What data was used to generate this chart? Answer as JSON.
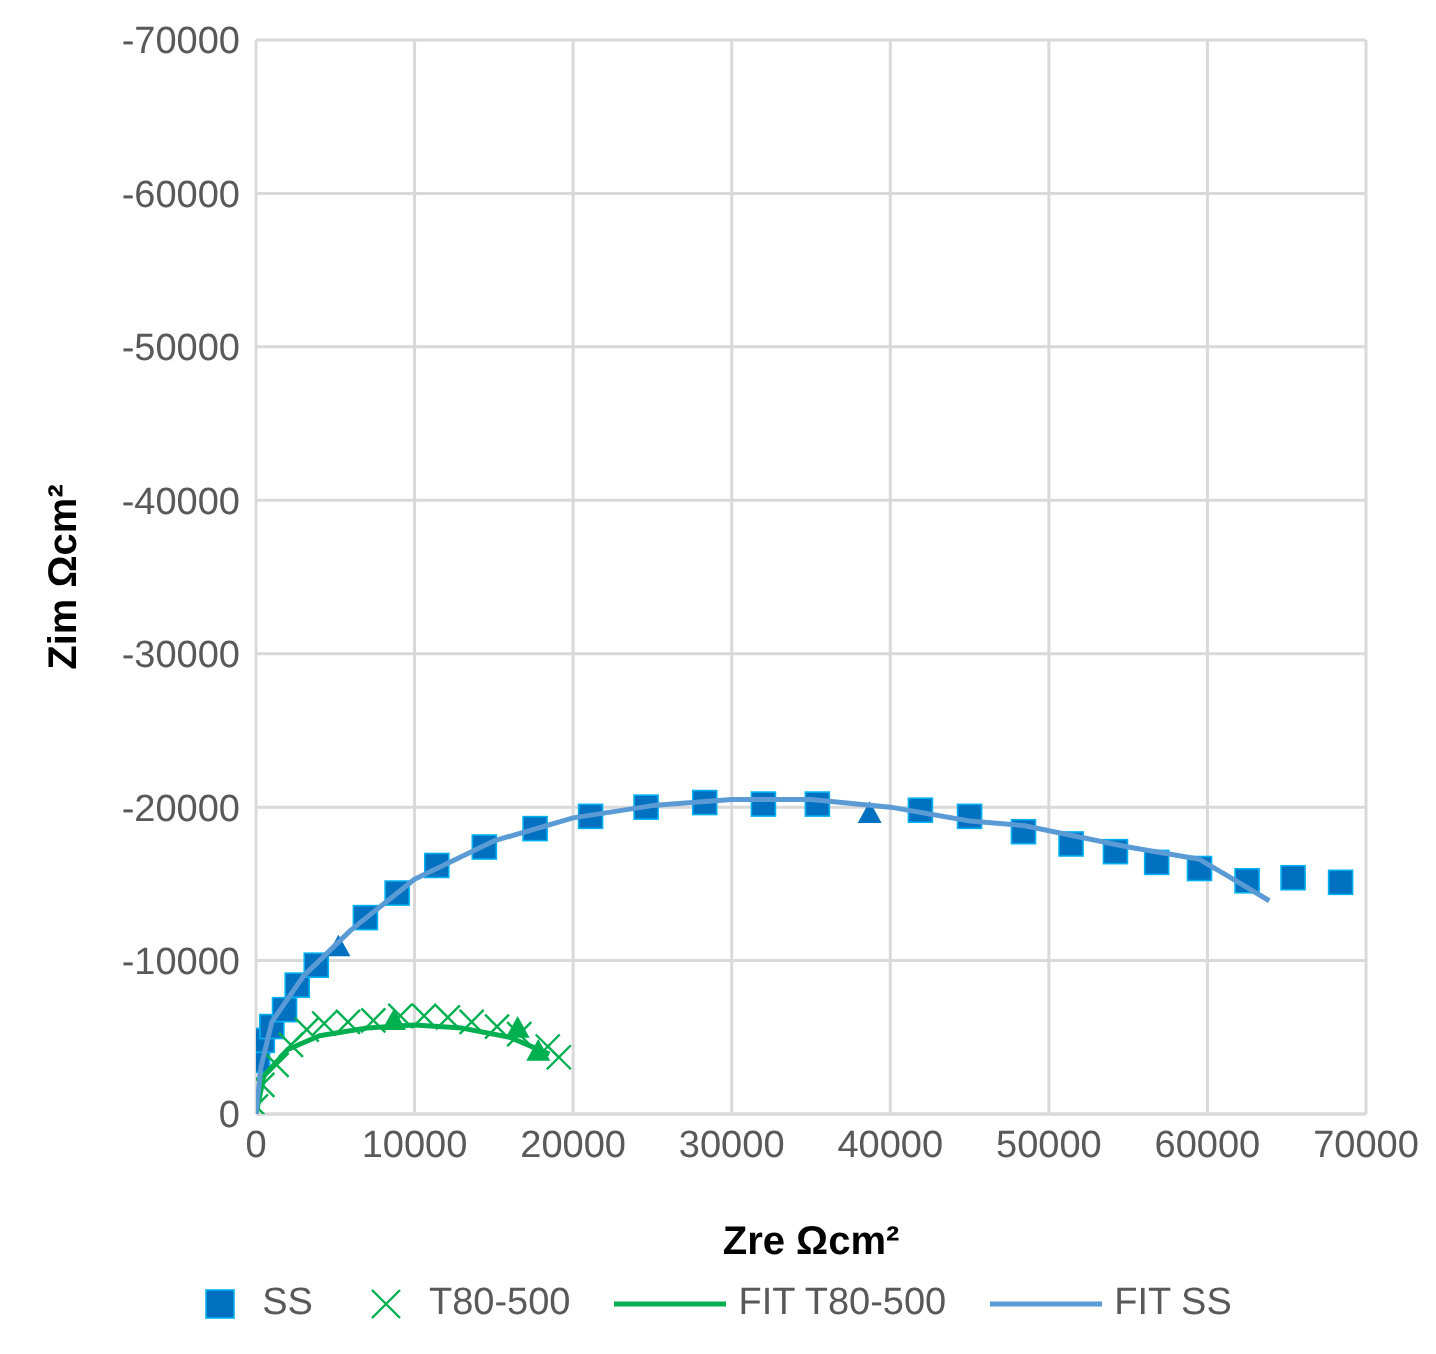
{
  "chart_data": {
    "type": "scatter",
    "xlabel": "Zre Ωcm²",
    "ylabel": "Zim Ωcm²",
    "xlim": [
      0,
      70000
    ],
    "xticks": [
      0,
      10000,
      20000,
      30000,
      40000,
      50000,
      60000,
      70000
    ],
    "ylim": [
      0,
      -70000
    ],
    "yticks": [
      0,
      -10000,
      -20000,
      -30000,
      -40000,
      -50000,
      -60000,
      -70000
    ],
    "grid": true,
    "legend": "bottom",
    "series": [
      {
        "name": "SS",
        "marker": "square",
        "color": "#0070c0",
        "x": [
          100,
          400,
          1000,
          1800,
          2600,
          3800,
          6900,
          8900,
          11400,
          14400,
          17600,
          21100,
          24600,
          28300,
          32000,
          35400,
          41900,
          45000,
          48400,
          51400,
          54200,
          56800,
          59500,
          62500,
          65400,
          68400
        ],
        "values": [
          -3500,
          -4800,
          -5700,
          -6800,
          -8400,
          -9700,
          -12800,
          -14400,
          -16200,
          -17400,
          -18600,
          -19400,
          -20000,
          -20300,
          -20200,
          -20200,
          -19800,
          -19400,
          -18400,
          -17600,
          -17100,
          -16400,
          -16000,
          -15200,
          -15400,
          -15100
        ]
      },
      {
        "name": "T80-500",
        "marker": "cross",
        "color": "#00b050",
        "x": [
          0,
          400,
          1300,
          2200,
          3200,
          4300,
          5800,
          7400,
          9100,
          10600,
          12100,
          13600,
          15200,
          16600,
          18400,
          19100
        ],
        "values": [
          -500,
          -1900,
          -3200,
          -4500,
          -5500,
          -5900,
          -6000,
          -6100,
          -6400,
          -6400,
          -6300,
          -6000,
          -5700,
          -5200,
          -4400,
          -3700
        ]
      },
      {
        "marker": "triangle",
        "color": "#0070c0",
        "x": [
          5200,
          38700
        ],
        "values": [
          -10900,
          -19600
        ]
      },
      {
        "marker": "triangle",
        "color": "#00b050",
        "x": [
          8700,
          16500,
          17800
        ],
        "values": [
          -6100,
          -5600,
          -4100
        ]
      },
      {
        "name": "FIT T80-500",
        "type": "line",
        "marker": "none",
        "line_style": "solid",
        "color": "#00b050",
        "x": [
          0,
          500,
          2000,
          4000,
          7000,
          10000,
          13000,
          16000,
          18500
        ],
        "values": [
          0,
          -2500,
          -4200,
          -5100,
          -5600,
          -5800,
          -5600,
          -5000,
          -3900
        ]
      },
      {
        "name": "FIT SS",
        "type": "line",
        "marker": "none",
        "line_style": "solid",
        "color": "#5b9bd5",
        "x": [
          0,
          300,
          1000,
          3000,
          6000,
          10000,
          15000,
          20000,
          25000,
          30000,
          35000,
          40000,
          45000,
          48400,
          55000,
          59500,
          61300,
          63900
        ],
        "values": [
          0,
          -3000,
          -6000,
          -9000,
          -12000,
          -15300,
          -17800,
          -19300,
          -20100,
          -20500,
          -20500,
          -20000,
          -19100,
          -18800,
          -17400,
          -16600,
          -15500,
          -13900
        ]
      }
    ]
  }
}
